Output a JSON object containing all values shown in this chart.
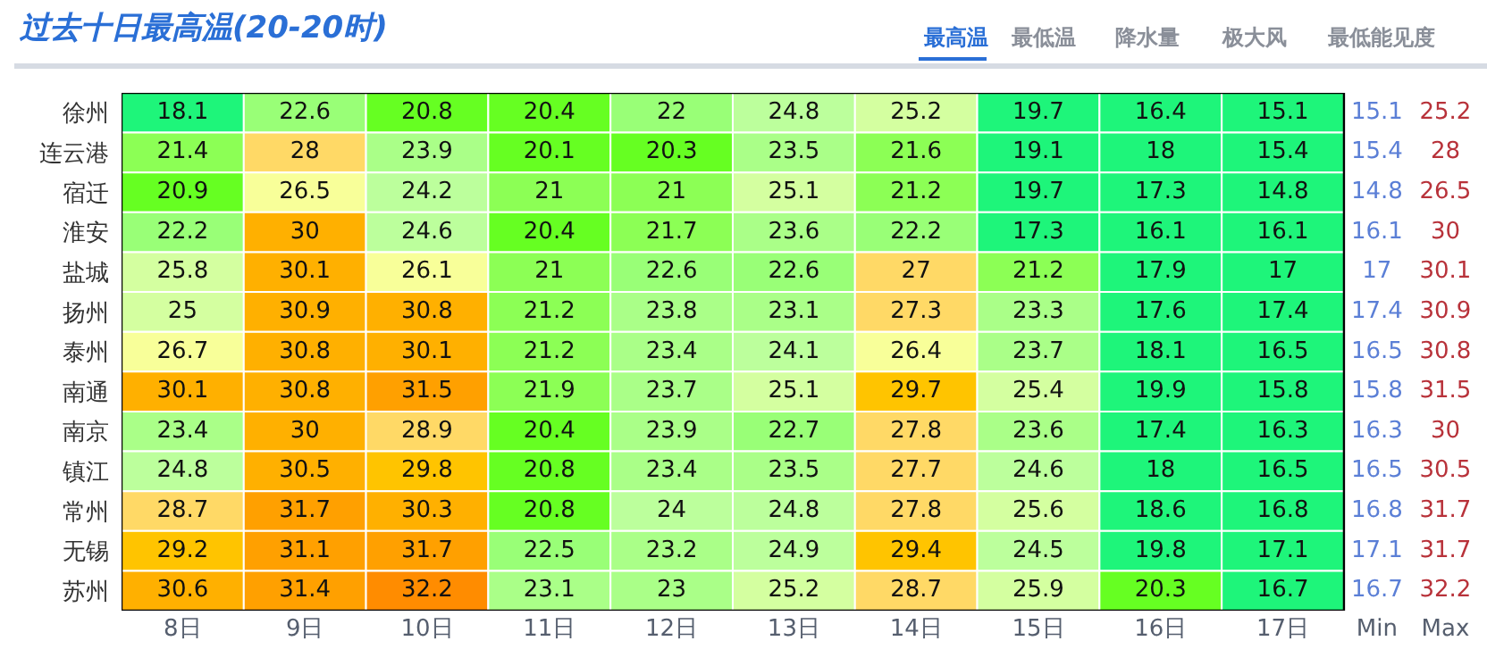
{
  "chart_data": {
    "type": "heatmap",
    "data_labels": true,
    "title": "过去十日最高温(20-20时)",
    "annotations": [
      "最高温",
      "最低温",
      "降水量",
      "极大风",
      "最低能见度"
    ],
    "categories": [
      "8日",
      "9日",
      "10日",
      "11日",
      "12日",
      "13日",
      "14日",
      "15日",
      "16日",
      "17日",
      "Min",
      "Max"
    ],
    "colors": [
      null,
      null,
      null,
      null,
      null,
      null,
      null,
      null,
      null,
      null,
      "#5b7fd6",
      "#b8323a"
    ],
    "y_categories": [
      "徐州",
      "连云港",
      "宿迁",
      "淮安",
      "盐城",
      "扬州",
      "泰州",
      "南通",
      "南京",
      "镇江",
      "常州",
      "无锡",
      "苏州"
    ],
    "cells": [
      [
        18.1,
        22.6,
        20.8,
        20.4,
        22,
        24.8,
        25.2,
        19.7,
        16.4,
        15.1,
        15.1,
        25.2
      ],
      [
        21.4,
        28,
        23.9,
        20.1,
        20.3,
        23.5,
        21.6,
        19.1,
        18,
        15.4,
        15.4,
        28
      ],
      [
        20.9,
        26.5,
        24.2,
        21,
        21,
        25.1,
        21.2,
        19.7,
        17.3,
        14.8,
        14.8,
        26.5
      ],
      [
        22.2,
        30,
        24.6,
        20.4,
        21.7,
        23.6,
        22.2,
        17.3,
        16.1,
        16.1,
        16.1,
        30
      ],
      [
        25.8,
        30.1,
        26.1,
        21,
        22.6,
        22.6,
        27,
        21.2,
        17.9,
        17,
        17,
        30.1
      ],
      [
        25,
        30.9,
        30.8,
        21.2,
        23.8,
        23.1,
        27.3,
        23.3,
        17.6,
        17.4,
        17.4,
        30.9
      ],
      [
        26.7,
        30.8,
        30.1,
        21.2,
        23.4,
        24.1,
        26.4,
        23.7,
        18.1,
        16.5,
        16.5,
        30.8
      ],
      [
        30.1,
        30.8,
        31.5,
        21.9,
        23.7,
        25.1,
        29.7,
        25.4,
        19.9,
        15.8,
        15.8,
        31.5
      ],
      [
        23.4,
        30,
        28.9,
        20.4,
        23.9,
        22.7,
        27.8,
        23.6,
        17.4,
        16.3,
        16.3,
        30
      ],
      [
        24.8,
        30.5,
        29.8,
        20.8,
        23.4,
        23.5,
        27.7,
        24.6,
        18,
        16.5,
        16.5,
        30.5
      ],
      [
        28.7,
        31.7,
        30.3,
        20.8,
        24,
        24.8,
        27.8,
        25.6,
        18.6,
        16.8,
        16.8,
        31.7
      ],
      [
        29.2,
        31.1,
        31.7,
        22.5,
        23.2,
        24.9,
        29.4,
        24.5,
        19.8,
        17.1,
        17.1,
        31.7
      ],
      [
        30.6,
        31.4,
        32.2,
        23.1,
        23,
        25.2,
        28.7,
        25.9,
        20.3,
        16.7,
        16.7,
        32.2
      ]
    ]
  }
}
